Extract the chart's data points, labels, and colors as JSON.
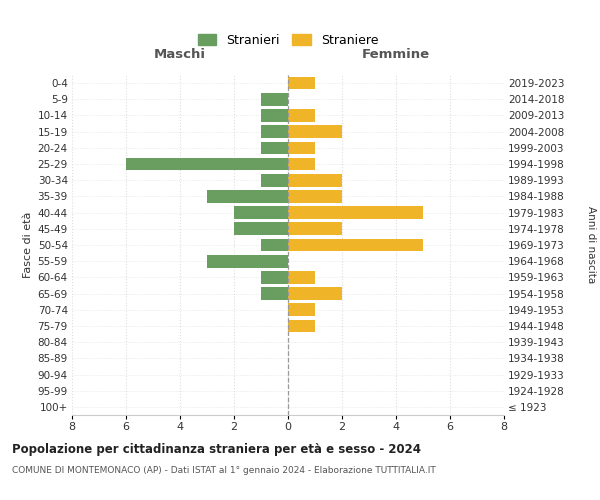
{
  "age_groups": [
    "100+",
    "95-99",
    "90-94",
    "85-89",
    "80-84",
    "75-79",
    "70-74",
    "65-69",
    "60-64",
    "55-59",
    "50-54",
    "45-49",
    "40-44",
    "35-39",
    "30-34",
    "25-29",
    "20-24",
    "15-19",
    "10-14",
    "5-9",
    "0-4"
  ],
  "birth_years": [
    "≤ 1923",
    "1924-1928",
    "1929-1933",
    "1934-1938",
    "1939-1943",
    "1944-1948",
    "1949-1953",
    "1954-1958",
    "1959-1963",
    "1964-1968",
    "1969-1973",
    "1974-1978",
    "1979-1983",
    "1984-1988",
    "1989-1993",
    "1994-1998",
    "1999-2003",
    "2004-2008",
    "2009-2013",
    "2014-2018",
    "2019-2023"
  ],
  "maschi": [
    0,
    0,
    0,
    0,
    0,
    0,
    0,
    1,
    1,
    3,
    1,
    2,
    2,
    3,
    1,
    6,
    1,
    1,
    1,
    1,
    0
  ],
  "femmine": [
    0,
    0,
    0,
    0,
    0,
    1,
    1,
    2,
    1,
    0,
    5,
    2,
    5,
    2,
    2,
    1,
    1,
    2,
    1,
    0,
    1
  ],
  "maschi_color": "#6a9e60",
  "femmine_color": "#f0b429",
  "title_main": "Popolazione per cittadinanza straniera per età e sesso - 2024",
  "title_sub": "COMUNE DI MONTEMONACO (AP) - Dati ISTAT al 1° gennaio 2024 - Elaborazione TUTTITALIA.IT",
  "xlabel_left": "Maschi",
  "xlabel_right": "Femmine",
  "ylabel_left": "Fasce di età",
  "ylabel_right": "Anni di nascita",
  "legend_maschi": "Stranieri",
  "legend_femmine": "Straniere",
  "xlim": 8,
  "background_color": "#ffffff",
  "grid_color": "#cccccc",
  "grid_color2": "#dddddd"
}
